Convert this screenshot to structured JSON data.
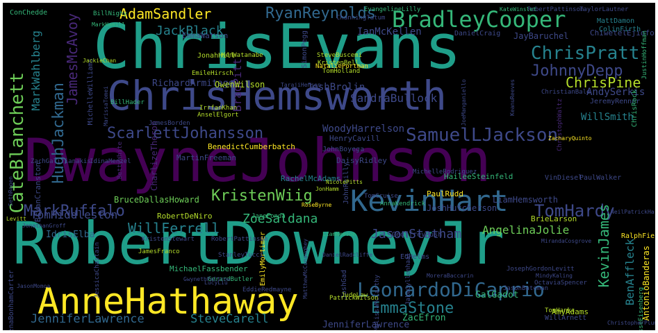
{
  "palette": {
    "yellow": "#fde725",
    "lime": "#b5de2b",
    "lgreen": "#6ece58",
    "green": "#35b779",
    "teal": "#1f9e89",
    "tealblue": "#26828e",
    "blue": "#31688e",
    "indigo": "#3e4989",
    "purple": "#482878",
    "dpurple": "#440154"
  },
  "words": [
    {
      "text": "DwayneJohnson",
      "color": "dpurple"
    },
    {
      "text": "RobertDowneyJr",
      "color": "teal"
    },
    {
      "text": "ChrisEvans",
      "color": "teal"
    },
    {
      "text": "ChrisHemsworth",
      "color": "indigo"
    },
    {
      "text": "AnneHathaway",
      "color": "yellow"
    },
    {
      "text": "BradleyCooper",
      "color": "green"
    },
    {
      "text": "KevinHart",
      "color": "blue"
    },
    {
      "text": "LeonardoDiCaprio",
      "color": "blue"
    },
    {
      "text": "ScarlettJohansson",
      "color": "indigo"
    },
    {
      "text": "SamuelLJackson",
      "color": "indigo"
    },
    {
      "text": "MarkRuffalo",
      "color": "indigo"
    },
    {
      "text": "KristenWiig",
      "color": "lgreen"
    },
    {
      "text": "TomHardy",
      "color": "indigo"
    },
    {
      "text": "ChrisPratt",
      "color": "tealblue"
    },
    {
      "text": "JohnnyDepp",
      "color": "indigo"
    },
    {
      "text": "ChrisPine",
      "color": "lime"
    },
    {
      "text": "RyanReynolds",
      "color": "blue"
    },
    {
      "text": "AdamSandler",
      "color": "yellow"
    },
    {
      "text": "JackBlack",
      "color": "tealblue"
    },
    {
      "text": "WillFerrell",
      "color": "tealblue"
    },
    {
      "text": "EmmaStone",
      "color": "tealblue"
    },
    {
      "text": "JenniferLawrence",
      "color": "blue"
    },
    {
      "text": "SteveCarell",
      "color": "tealblue"
    },
    {
      "text": "TomHiddleston",
      "color": "indigo"
    },
    {
      "text": "ZoeSaldana",
      "color": "green"
    },
    {
      "text": "JasonStatham",
      "color": "indigo"
    },
    {
      "text": "AngelinaJolie",
      "color": "lgreen"
    },
    {
      "text": "SandraBullock",
      "color": "indigo"
    },
    {
      "text": "AndySerkis",
      "color": "indigo"
    },
    {
      "text": "WillSmith",
      "color": "tealblue"
    },
    {
      "text": "GeoffreyRush",
      "color": "indigo"
    },
    {
      "text": "JoshBrolin",
      "color": "indigo"
    },
    {
      "text": "IanMcKellen",
      "color": "indigo"
    },
    {
      "text": "HughJackman",
      "color": "blue"
    },
    {
      "text": "CateBlanchett",
      "color": "lgreen"
    },
    {
      "text": "MarkWahlberg",
      "color": "tealblue"
    },
    {
      "text": "JamesMcAvoy",
      "color": "purple"
    },
    {
      "text": "KevinJames",
      "color": "green"
    },
    {
      "text": "BenAffleck",
      "color": "tealblue"
    },
    {
      "text": "WoodyHarrelson",
      "color": "indigo"
    },
    {
      "text": "EmmaWatson",
      "color": "indigo"
    },
    {
      "text": "JoshHutcherson",
      "color": "indigo"
    },
    {
      "text": "JenniferLawrence",
      "color": "indigo"
    },
    {
      "text": "GalGadot",
      "color": "green"
    },
    {
      "text": "ZacEfron",
      "color": "green"
    },
    {
      "text": "AmyAdams",
      "color": "lime"
    },
    {
      "text": "PaulRudd",
      "color": "yellow"
    },
    {
      "text": "BrieLarson",
      "color": "lime"
    },
    {
      "text": "LiamHemsworth",
      "color": "indigo"
    },
    {
      "text": "RobertDeNiro",
      "color": "lime"
    },
    {
      "text": "BradPitt",
      "color": "purple"
    },
    {
      "text": "IdrisElba",
      "color": "blue"
    },
    {
      "text": "BenedictCumberbatch",
      "color": "yellow"
    },
    {
      "text": "MichaelFassbender",
      "color": "green"
    },
    {
      "text": "EmilyMortimer",
      "color": "yellow"
    },
    {
      "text": "RachelMcAdams",
      "color": "tealblue"
    },
    {
      "text": "TomCruise",
      "color": "indigo"
    },
    {
      "text": "HenryCavill",
      "color": "indigo"
    },
    {
      "text": "JohnBoyega",
      "color": "indigo"
    },
    {
      "text": "DaisyRidley",
      "color": "indigo"
    },
    {
      "text": "MartinFreeman",
      "color": "indigo"
    },
    {
      "text": "JaneFonda",
      "color": "green"
    },
    {
      "text": "KristenStewart",
      "color": "indigo"
    },
    {
      "text": "RobertPattinson",
      "color": "indigo"
    },
    {
      "text": "StanleyTucci",
      "color": "indigo"
    },
    {
      "text": "GerardButler",
      "color": "green"
    },
    {
      "text": "JessicaChastain",
      "color": "indigo"
    },
    {
      "text": "BryanCranston",
      "color": "indigo"
    },
    {
      "text": "JonathanGroff",
      "color": "indigo"
    },
    {
      "text": "MatthewMcConaughey",
      "color": "indigo"
    },
    {
      "text": "HaileeSteinfeld",
      "color": "green"
    },
    {
      "text": "ChristophWaltz",
      "color": "purple"
    },
    {
      "text": "JoshGad",
      "color": "indigo"
    },
    {
      "text": "SimonPegg",
      "color": "indigo"
    },
    {
      "text": "AnnaKendrick",
      "color": "green"
    },
    {
      "text": "RalphFiennes",
      "color": "yellow"
    },
    {
      "text": "JeremyRenner",
      "color": "indigo"
    },
    {
      "text": "ChrisRock",
      "color": "green"
    },
    {
      "text": "VinDiesel",
      "color": "indigo"
    },
    {
      "text": "PaulWalker",
      "color": "indigo"
    },
    {
      "text": "JesseEisenberg",
      "color": "green"
    },
    {
      "text": "AntonioBanderas",
      "color": "yellow"
    },
    {
      "text": "ChiwetelEjiofor",
      "color": "indigo"
    },
    {
      "text": "MattDamon",
      "color": "tealblue"
    },
    {
      "text": "ColinFirth",
      "color": "tealblue"
    },
    {
      "text": "JayBaruchel",
      "color": "indigo"
    },
    {
      "text": "DanielCraig",
      "color": "indigo"
    },
    {
      "text": "NataliePortman",
      "color": "yellow"
    },
    {
      "text": "SteveBuscemi",
      "color": "lime"
    },
    {
      "text": "ChanningTatum",
      "color": "indigo"
    },
    {
      "text": "RobertPattinson",
      "color": "indigo"
    },
    {
      "text": "TaylorLautner",
      "color": "indigo"
    },
    {
      "text": "JustinHoffman",
      "color": "green"
    },
    {
      "text": "KateWinslet",
      "color": "green"
    },
    {
      "text": "EmileHirsch",
      "color": "lime"
    },
    {
      "text": "RichardArmitage",
      "color": "indigo"
    },
    {
      "text": "OwenWilson",
      "color": "lime"
    },
    {
      "text": "JonahHill",
      "color": "lime"
    },
    {
      "text": "CharlizeTheron",
      "color": "purple"
    },
    {
      "text": "BettyWhite",
      "color": "purple"
    },
    {
      "text": "MichelleWilliams",
      "color": "indigo"
    },
    {
      "text": "JamesBorden",
      "color": "indigo"
    },
    {
      "text": "ZachGalifianakis",
      "color": "indigo"
    },
    {
      "text": "IdinaMenzel",
      "color": "indigo"
    },
    {
      "text": "BruceDallasHoward",
      "color": "lgreen"
    },
    {
      "text": "JamesFranco",
      "color": "lime"
    },
    {
      "text": "HelenaBonhamCarter",
      "color": "indigo"
    },
    {
      "text": "JasonMomoa",
      "color": "indigo"
    },
    {
      "text": "LucyLiu",
      "color": "indigo"
    },
    {
      "text": "EddieRedmayne",
      "color": "indigo"
    },
    {
      "text": "JasonBateman",
      "color": "indigo"
    },
    {
      "text": "MelissaMcCarthy",
      "color": "indigo"
    },
    {
      "text": "PatrickWilson",
      "color": "lime"
    },
    {
      "text": "JudeLaw",
      "color": "lime"
    },
    {
      "text": "WillArnett",
      "color": "indigo"
    },
    {
      "text": "ChristopherPlummer",
      "color": "indigo"
    },
    {
      "text": "OctaviaSpencer",
      "color": "indigo"
    },
    {
      "text": "JosephGordonLevitt",
      "color": "indigo"
    },
    {
      "text": "MindyKaling",
      "color": "indigo"
    },
    {
      "text": "EdHelms",
      "color": "indigo"
    },
    {
      "text": "KenWatanabe",
      "color": "lime"
    },
    {
      "text": "BillHader",
      "color": "green"
    },
    {
      "text": "IrrfanKhan",
      "color": "lime"
    },
    {
      "text": "AnselElgort",
      "color": "lime"
    },
    {
      "text": "JohnReilly",
      "color": "indigo"
    },
    {
      "text": "TomHolland",
      "color": "lime"
    },
    {
      "text": "KristenBell",
      "color": "lime"
    },
    {
      "text": "ChristianBale",
      "color": "indigo"
    },
    {
      "text": "MichelleRodriguez",
      "color": "indigo"
    },
    {
      "text": "BillNighy",
      "color": "green"
    },
    {
      "text": "MarkHamill",
      "color": "green"
    },
    {
      "text": "EvangelineLilly",
      "color": "green"
    },
    {
      "text": "JackieChan",
      "color": "lime"
    },
    {
      "text": "GwynethPaltrow",
      "color": "indigo"
    },
    {
      "text": "JakeGyllenhaal",
      "color": "indigo"
    },
    {
      "text": "NicolePitts",
      "color": "lime"
    },
    {
      "text": "RoseByrne",
      "color": "yellow"
    },
    {
      "text": "DanielRadcliffe",
      "color": "indigo"
    },
    {
      "text": "LiamNeeson",
      "color": "green"
    },
    {
      "text": "MarissaTomei",
      "color": "indigo"
    },
    {
      "text": "ZacharyQuinto",
      "color": "yellow"
    },
    {
      "text": "MirandaCosgrove",
      "color": "indigo"
    },
    {
      "text": "MoreraBaccarin",
      "color": "indigo"
    },
    {
      "text": "JoeManganiello",
      "color": "indigo"
    },
    {
      "text": "KeanuReeves",
      "color": "indigo"
    },
    {
      "text": "SethRogen",
      "color": "indigo"
    },
    {
      "text": "NeilPatrickHarris",
      "color": "indigo"
    },
    {
      "text": "Levitt",
      "color": "lime"
    },
    {
      "text": "TarajiHenson",
      "color": "indigo"
    },
    {
      "text": "JonHamm",
      "color": "lime"
    },
    {
      "text": "TomHanks",
      "color": "lime"
    },
    {
      "text": "ConChedde",
      "color": "green"
    }
  ]
}
